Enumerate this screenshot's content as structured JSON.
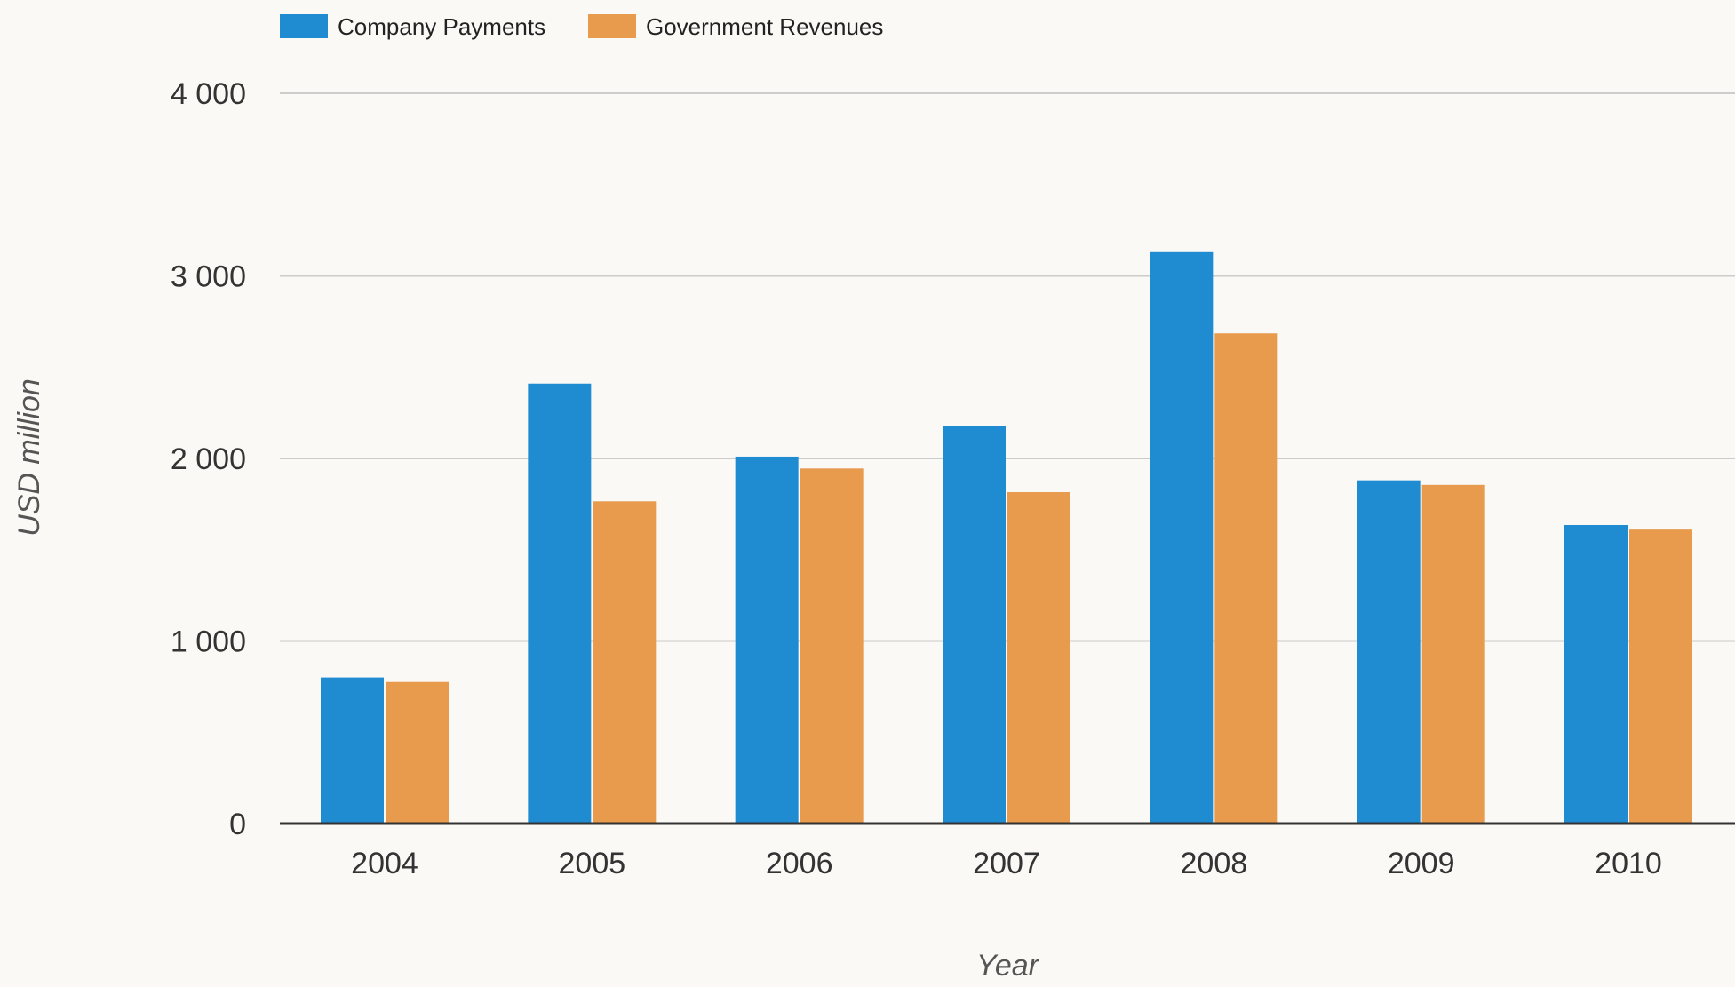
{
  "chart_data": {
    "type": "bar",
    "title": "",
    "xlabel": "Year",
    "ylabel": "USD million",
    "categories": [
      "2004",
      "2005",
      "2006",
      "2007",
      "2008",
      "2009",
      "2010"
    ],
    "series": [
      {
        "name": "Company Payments",
        "color": "#1f8bd1",
        "values": [
          800,
          2410,
          2010,
          2180,
          3130,
          1880,
          1635
        ]
      },
      {
        "name": "Government Revenues",
        "color": "#e89a4d",
        "values": [
          775,
          1765,
          1945,
          1815,
          2685,
          1855,
          1610
        ]
      }
    ],
    "ylim": [
      0,
      4000
    ],
    "yticks": [
      0,
      1000,
      2000,
      3000,
      4000
    ],
    "ytick_labels": [
      "0",
      "1 000",
      "2 000",
      "3 000",
      "4 000"
    ],
    "grid": true,
    "legend_position": "top-left",
    "colors": {
      "background": "#faf9f6",
      "grid": "#cccccc",
      "axis": "#333333",
      "text": "#333333"
    }
  }
}
